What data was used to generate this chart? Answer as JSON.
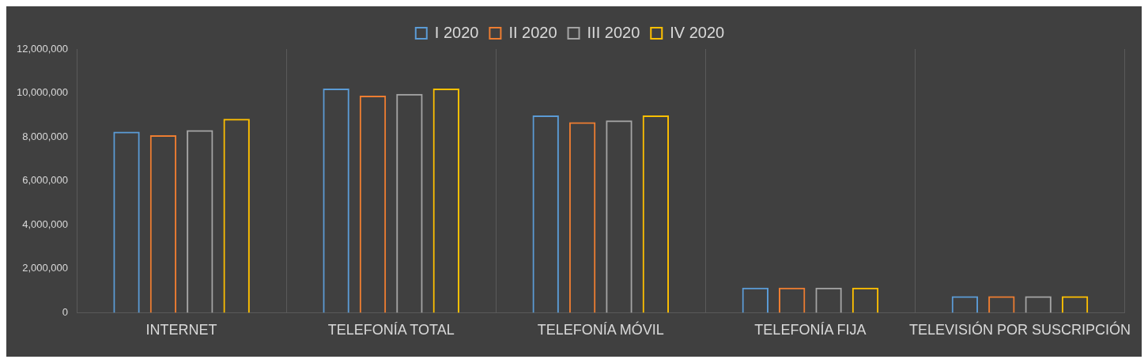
{
  "chart_data": {
    "type": "bar",
    "categories": [
      "INTERNET",
      "TELEFONÍA TOTAL",
      "TELEFONÍA MÓVIL",
      "TELEFONÍA FIJA",
      "TELEVISIÓN POR SUSCRIPCIÓN"
    ],
    "series": [
      {
        "name": "I 2020",
        "color": "#5b9bd5",
        "values": [
          8240000,
          10200000,
          8980000,
          1140000,
          750000
        ]
      },
      {
        "name": "II 2020",
        "color": "#ed7d31",
        "values": [
          8080000,
          9880000,
          8670000,
          1140000,
          750000
        ]
      },
      {
        "name": "III 2020",
        "color": "#a5a5a5",
        "values": [
          8310000,
          9960000,
          8750000,
          1140000,
          750000
        ]
      },
      {
        "name": "IV 2020",
        "color": "#ffc000",
        "values": [
          8820000,
          10200000,
          8980000,
          1140000,
          750000
        ]
      }
    ],
    "ylim": [
      0,
      12000000
    ],
    "yticks": [
      {
        "value": 0,
        "label": "0"
      },
      {
        "value": 2000000,
        "label": "2,000,000"
      },
      {
        "value": 4000000,
        "label": "4,000,000"
      },
      {
        "value": 6000000,
        "label": "6,000,000"
      },
      {
        "value": 8000000,
        "label": "8,000,000"
      },
      {
        "value": 10000000,
        "label": "10,000,000"
      },
      {
        "value": 12000000,
        "label": "12,000,000"
      }
    ],
    "grid": "x",
    "legend": "top"
  }
}
